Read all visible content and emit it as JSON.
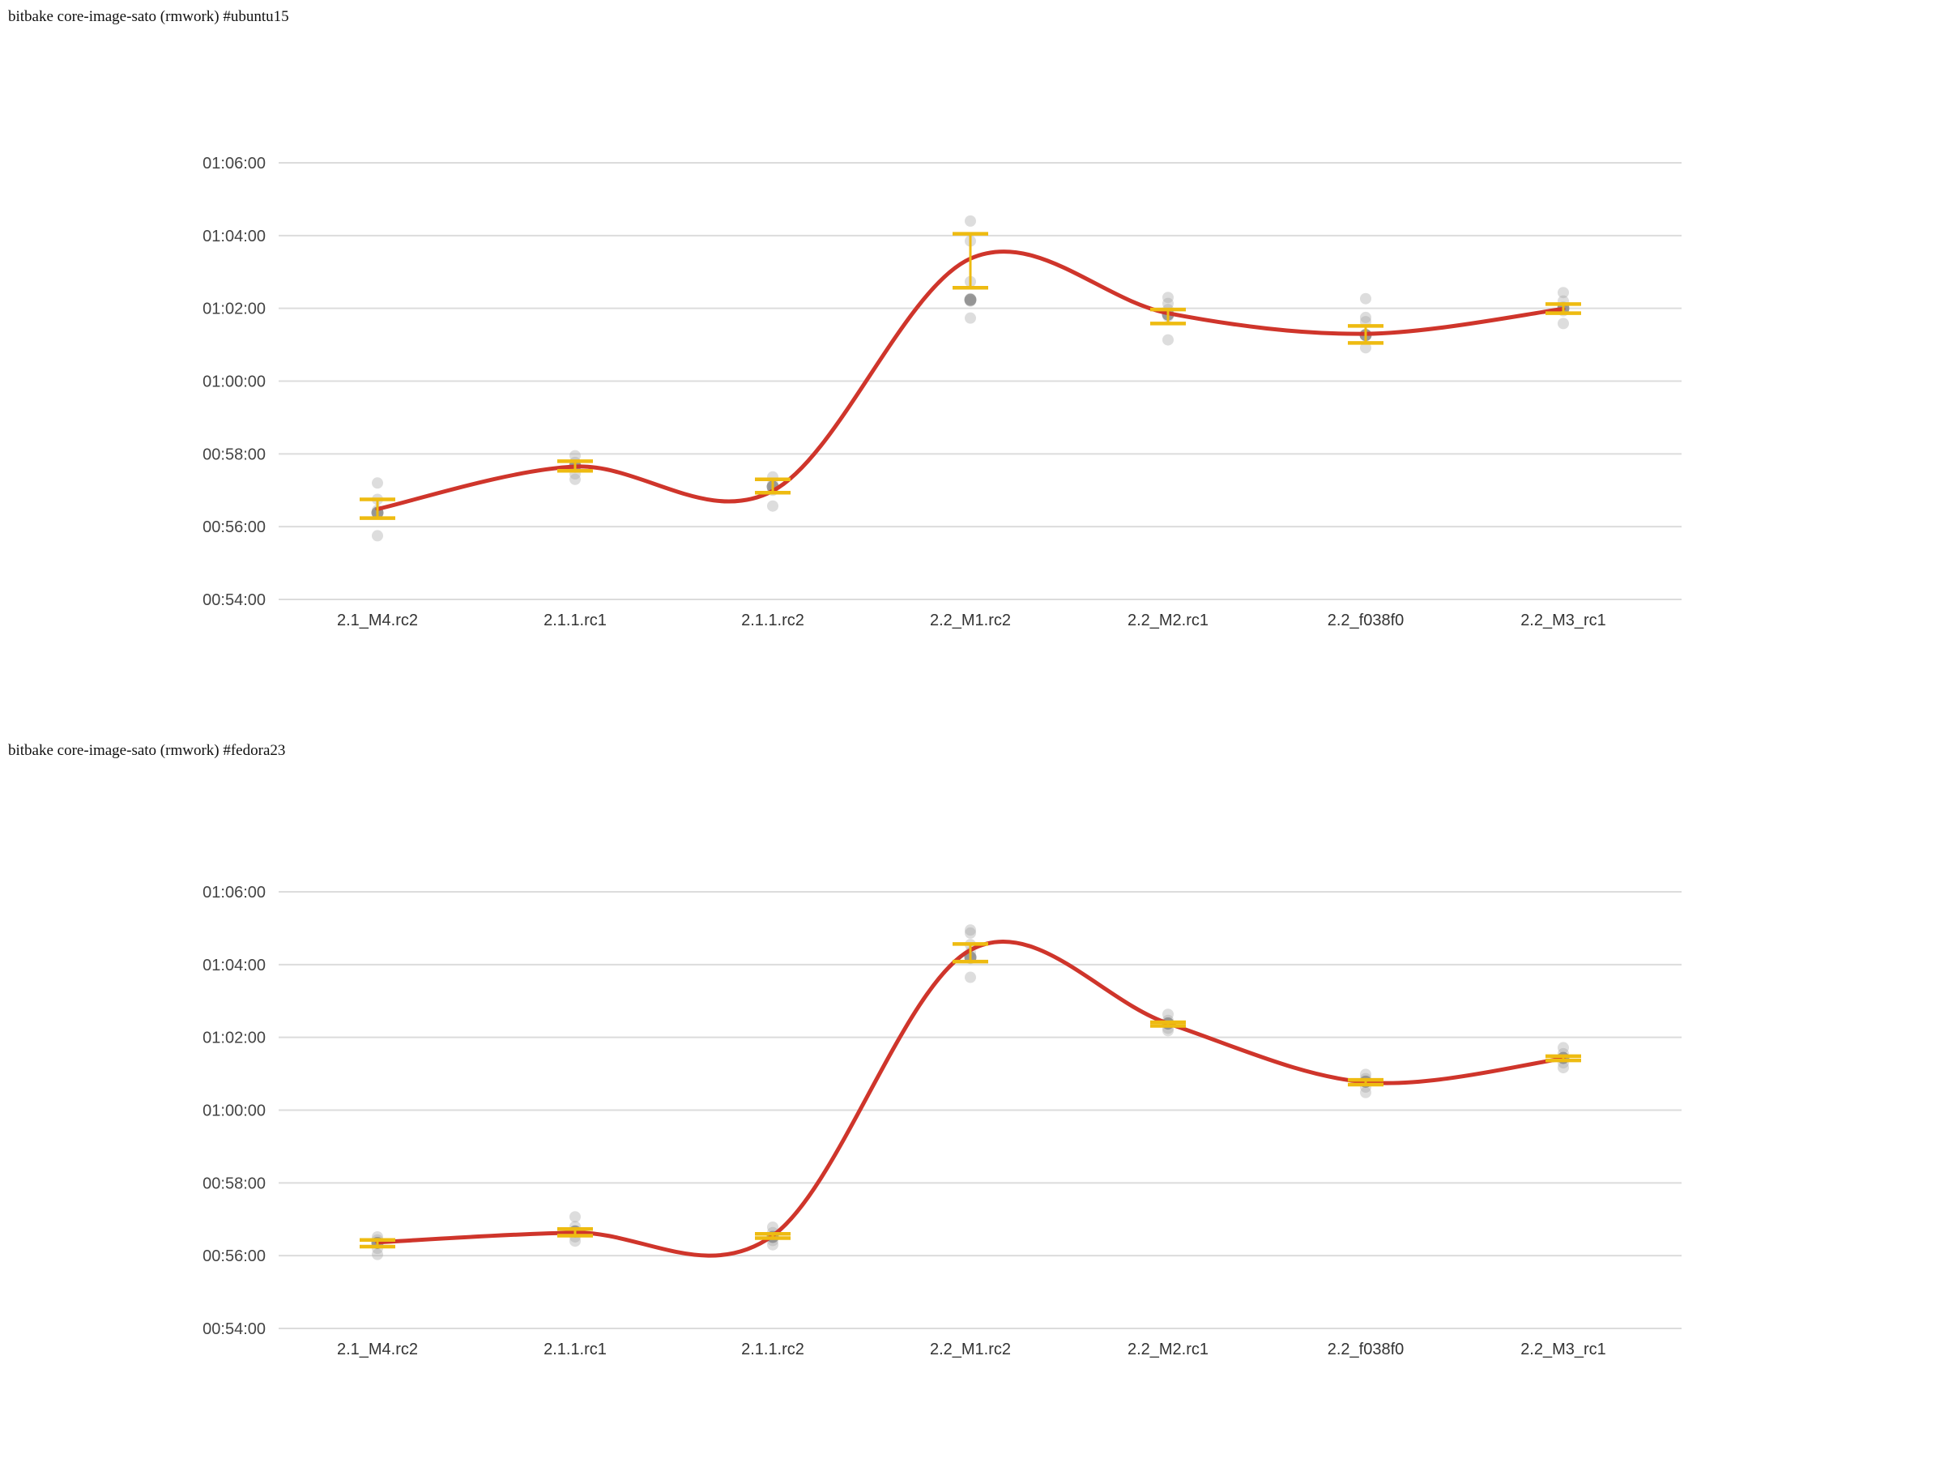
{
  "colors": {
    "trend_line": "#cf352b",
    "error_bar": "#eebb11",
    "scatter_point": "#9e9e9e",
    "median_point": "#8c8c8c",
    "gridline": "#dcdcdc",
    "tick_text": "#444444",
    "category_text": "#333333",
    "title_text": "#111111",
    "background": "#ffffff"
  },
  "chart_data": [
    {
      "type": "scatter",
      "title": "bitbake core-image-sato (rmwork) #ubuntu15",
      "xlabel": "",
      "ylabel": "",
      "legend": "none",
      "grid": true,
      "ylim": [
        "00:54:00",
        "01:06:00"
      ],
      "y_ticks": [
        "00:54:00",
        "00:56:00",
        "00:58:00",
        "01:00:00",
        "01:02:00",
        "01:04:00",
        "01:06:00"
      ],
      "categories": [
        "2.1_M4.rc2",
        "2.1.1.rc1",
        "2.1.1.rc2",
        "2.2_M1.rc2",
        "2.2_M2.rc1",
        "2.2_f038f0",
        "2.2_M3_rc1"
      ],
      "points": [
        {
          "category": "2.1_M4.rc2",
          "line": "00:56:29",
          "median": "00:56:23",
          "error_low": "00:56:14",
          "error_high": "00:56:45",
          "scatter": [
            "00:57:12",
            "00:56:45",
            "00:56:27",
            "00:56:21",
            "00:55:45"
          ]
        },
        {
          "category": "2.1.1.rc1",
          "line": "00:57:39",
          "median": "00:57:40",
          "error_low": "00:57:32",
          "error_high": "00:57:48",
          "scatter": [
            "00:57:57",
            "00:57:46",
            "00:57:38",
            "00:57:27",
            "00:57:18"
          ]
        },
        {
          "category": "2.1.1.rc2",
          "line": "00:56:59",
          "median": "00:57:06",
          "error_low": "00:56:56",
          "error_high": "00:57:18",
          "scatter": [
            "00:57:22",
            "00:57:10",
            "00:57:00",
            "00:56:34"
          ]
        },
        {
          "category": "2.2_M1.rc2",
          "line": "01:03:22",
          "median": "01:02:14",
          "error_low": "01:02:34",
          "error_high": "01:04:03",
          "scatter": [
            "01:04:24",
            "01:03:51",
            "01:02:44",
            "01:02:16",
            "01:02:12",
            "01:01:44"
          ]
        },
        {
          "category": "2.2_M2.rc1",
          "line": "01:01:52",
          "median": "01:01:50",
          "error_low": "01:01:35",
          "error_high": "01:01:58",
          "scatter": [
            "01:02:18",
            "01:02:08",
            "01:01:58",
            "01:01:47",
            "01:01:08"
          ]
        },
        {
          "category": "2.2_f038f0",
          "line": "01:01:18",
          "median": "01:01:16",
          "error_low": "01:01:03",
          "error_high": "01:01:31",
          "scatter": [
            "01:02:16",
            "01:01:45",
            "01:01:38",
            "01:01:15",
            "01:00:55"
          ]
        },
        {
          "category": "2.2_M3_rc1",
          "line": "01:01:59",
          "median": "01:02:00",
          "error_low": "01:01:52",
          "error_high": "01:02:07",
          "scatter": [
            "01:02:26",
            "01:02:12",
            "01:02:02",
            "01:01:56",
            "01:01:35"
          ]
        }
      ]
    },
    {
      "type": "scatter",
      "title": "bitbake core-image-sato (rmwork) #fedora23",
      "xlabel": "",
      "ylabel": "",
      "legend": "none",
      "grid": true,
      "ylim": [
        "00:54:00",
        "01:06:00"
      ],
      "y_ticks": [
        "00:54:00",
        "00:56:00",
        "00:58:00",
        "01:00:00",
        "01:02:00",
        "01:04:00",
        "01:06:00"
      ],
      "categories": [
        "2.1_M4.rc2",
        "2.1.1.rc1",
        "2.1.1.rc2",
        "2.2_M1.rc2",
        "2.2_M2.rc1",
        "2.2_f038f0",
        "2.2_M3_rc1"
      ],
      "points": [
        {
          "category": "2.1_M4.rc2",
          "line": "00:56:22",
          "median": "00:56:21",
          "error_low": "00:56:15",
          "error_high": "00:56:26",
          "scatter": [
            "00:56:31",
            "00:56:26",
            "00:56:21",
            "00:56:12",
            "00:56:02"
          ]
        },
        {
          "category": "2.1.1.rc1",
          "line": "00:56:38",
          "median": "00:56:40",
          "error_low": "00:56:33",
          "error_high": "00:56:44",
          "scatter": [
            "00:57:04",
            "00:56:48",
            "00:56:39",
            "00:56:31",
            "00:56:24"
          ]
        },
        {
          "category": "2.1.1.rc2",
          "line": "00:56:33",
          "median": "00:56:31",
          "error_low": "00:56:29",
          "error_high": "00:56:36",
          "scatter": [
            "00:56:47",
            "00:56:38",
            "00:56:31",
            "00:56:25",
            "00:56:18"
          ]
        },
        {
          "category": "2.2_M1.rc2",
          "line": "01:04:24",
          "median": "01:04:12",
          "error_low": "01:04:05",
          "error_high": "01:04:34",
          "scatter": [
            "01:04:57",
            "01:04:52",
            "01:04:33",
            "01:04:20",
            "01:04:10",
            "01:03:39"
          ]
        },
        {
          "category": "2.2_M2.rc1",
          "line": "01:02:23",
          "median": "01:02:23",
          "error_low": "01:02:19",
          "error_high": "01:02:25",
          "scatter": [
            "01:02:38",
            "01:02:28",
            "01:02:22",
            "01:02:15",
            "01:02:11"
          ]
        },
        {
          "category": "2.2_f038f0",
          "line": "01:00:46",
          "median": "01:00:47",
          "error_low": "01:00:42",
          "error_high": "01:00:50",
          "scatter": [
            "01:00:59",
            "01:00:52",
            "01:00:46",
            "01:00:38",
            "01:00:29"
          ]
        },
        {
          "category": "2.2_M3_rc1",
          "line": "01:01:25",
          "median": "01:01:26",
          "error_low": "01:01:22",
          "error_high": "01:01:29",
          "scatter": [
            "01:01:43",
            "01:01:33",
            "01:01:26",
            "01:01:18",
            "01:01:10"
          ]
        }
      ]
    }
  ]
}
